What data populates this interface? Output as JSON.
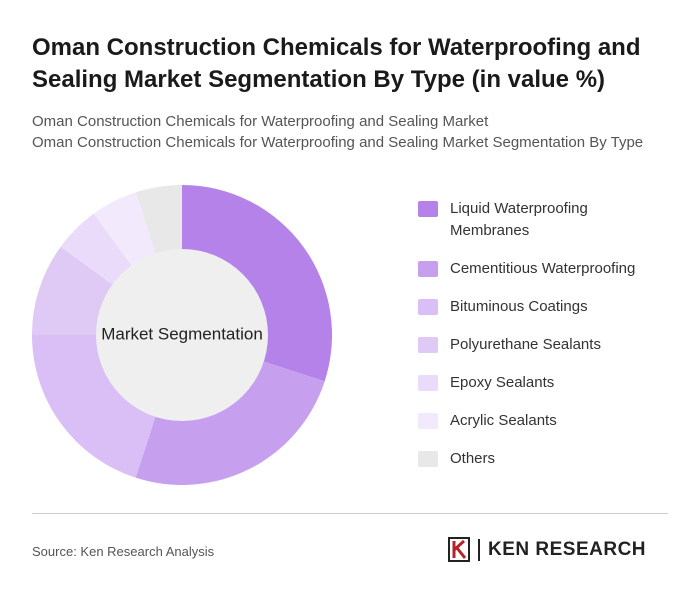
{
  "chart_data": {
    "type": "donut",
    "title": "Oman Construction Chemicals for Waterproofing and Sealing Market Segmentation By Type (in value %)",
    "subtitle": [
      "Oman Construction Chemicals for Waterproofing and Sealing Market",
      "Oman Construction Chemicals for Waterproofing and Sealing Market Segmentation By Type"
    ],
    "center_label": "Market Segmentation",
    "categories": [
      "Liquid Waterproofing Membranes",
      "Cementitious Waterproofing",
      "Bituminous Coatings",
      "Polyurethane Sealants",
      "Epoxy Sealants",
      "Acrylic Sealants",
      "Others"
    ],
    "values": [
      30,
      25,
      20,
      10,
      5,
      5,
      5
    ],
    "colors": [
      "#b582ea",
      "#c6a0ef",
      "#d9bff5",
      "#dfcaf6",
      "#e9dbf9",
      "#f2eafc",
      "#e8e8e8"
    ],
    "source": "Source: Ken Research Analysis",
    "brand": "KEN RESEARCH"
  }
}
